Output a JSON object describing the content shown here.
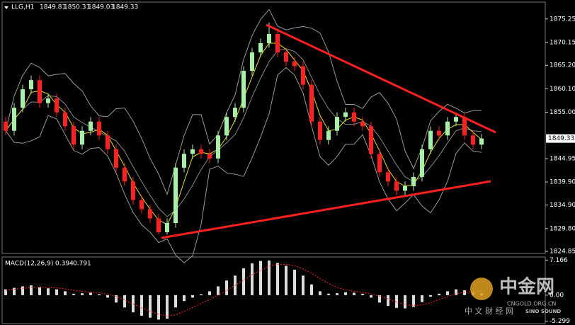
{
  "chart_data": {
    "type": "candlestick",
    "header": {
      "symbol": "LLG,H1",
      "ohlc": [
        1849.81,
        1850.31,
        1849.03,
        1849.33
      ]
    },
    "last_price": 1849.33,
    "up_color": "#a8f0a8",
    "down_color": "#ff2020",
    "open": [
      1853,
      1851,
      1856,
      1860,
      1862,
      1857,
      1858,
      1855,
      1852,
      1848,
      1851,
      1853,
      1850,
      1847,
      1843,
      1840,
      1836,
      1834,
      1832,
      1829,
      1831,
      1843,
      1846,
      1847,
      1846,
      1845,
      1850,
      1854,
      1856,
      1864,
      1868,
      1870,
      1872,
      1868,
      1866,
      1865,
      1861,
      1853,
      1849,
      1851,
      1854,
      1855,
      1853,
      1852,
      1846,
      1842,
      1840,
      1838,
      1839,
      1841,
      1847,
      1851,
      1850,
      1853,
      1854,
      1850,
      1848
    ],
    "high": [
      1854,
      1857,
      1861,
      1863,
      1863,
      1859,
      1859,
      1856,
      1853,
      1852,
      1854,
      1854,
      1851,
      1848,
      1844,
      1841,
      1837,
      1835,
      1833,
      1832,
      1844,
      1847,
      1848,
      1848,
      1847,
      1851,
      1855,
      1857,
      1865,
      1869,
      1871,
      1874.5,
      1873,
      1869,
      1867,
      1866,
      1862,
      1854,
      1852,
      1855,
      1856,
      1856,
      1854,
      1853,
      1847,
      1843,
      1841,
      1840,
      1842,
      1848,
      1852,
      1852,
      1854,
      1855,
      1855,
      1851,
      1850.31
    ],
    "low": [
      1850,
      1850,
      1855,
      1859,
      1856,
      1856,
      1854,
      1851,
      1847,
      1847,
      1850,
      1849,
      1846,
      1842,
      1839,
      1835,
      1833,
      1831,
      1828.5,
      1828.5,
      1830,
      1842,
      1845,
      1845,
      1844,
      1844,
      1849,
      1853,
      1855,
      1863,
      1867,
      1869,
      1867,
      1865,
      1864,
      1860,
      1852,
      1848,
      1848,
      1850,
      1853,
      1852,
      1851,
      1845,
      1841,
      1839,
      1837,
      1837,
      1838,
      1840,
      1846,
      1849,
      1849,
      1852,
      1849,
      1847,
      1847
    ],
    "close": [
      1851,
      1856,
      1860,
      1862,
      1857,
      1858,
      1855,
      1852,
      1848,
      1851,
      1853,
      1850,
      1847,
      1843,
      1840,
      1836,
      1834,
      1832,
      1829,
      1831,
      1843,
      1846,
      1847,
      1846,
      1845,
      1850,
      1854,
      1856,
      1864,
      1868,
      1870,
      1872,
      1868,
      1866,
      1865,
      1861,
      1853,
      1849,
      1851,
      1854,
      1855,
      1853,
      1852,
      1846,
      1842,
      1840,
      1838,
      1839,
      1841,
      1847,
      1851,
      1850,
      1853,
      1854,
      1850,
      1848,
      1849.33
    ],
    "ylim": [
      1824.4,
      1878.9
    ],
    "yticks": [
      1875.25,
      1870.15,
      {
        "value": 1865.2,
        "label": "1865.20"
      },
      {
        "value": 1860.1,
        "label": "1860.10"
      },
      {
        "value": 1855,
        "label": "1855.00"
      },
      1844.95,
      {
        "value": 1839.9,
        "label": "1839.90"
      },
      {
        "value": 1834.9,
        "label": "1834.90"
      },
      {
        "value": 1829.8,
        "label": "1829.80"
      },
      1824.85
    ],
    "macd": {
      "title": "MACD(12,26,9)",
      "main": 0.394,
      "signal_value": 0.791,
      "histogram": [
        1.2,
        1.5,
        1.8,
        2.0,
        1.6,
        1.4,
        1.2,
        0.8,
        0.3,
        0.4,
        0.5,
        0.2,
        -0.5,
        -1.5,
        -2.5,
        -3.5,
        -4.2,
        -4.6,
        -5.0,
        -4.8,
        -2.5,
        -1.2,
        -0.5,
        0.2,
        0.8,
        1.8,
        3.0,
        4.0,
        5.5,
        6.5,
        7.0,
        7.1,
        6.6,
        6.0,
        5.2,
        4.0,
        2.2,
        0.8,
        0.3,
        0.4,
        0.6,
        0.5,
        0.3,
        -0.5,
        -1.5,
        -2.2,
        -2.6,
        -2.7,
        -2.4,
        -1.4,
        -0.3,
        0.3,
        0.8,
        1.2,
        1.0,
        0.6,
        0.39
      ],
      "signal": [
        1.0,
        1.2,
        1.4,
        1.6,
        1.7,
        1.6,
        1.5,
        1.3,
        1.0,
        0.8,
        0.6,
        0.5,
        0.2,
        -0.3,
        -1.0,
        -1.8,
        -2.6,
        -3.3,
        -3.9,
        -4.3,
        -4.0,
        -3.3,
        -2.5,
        -1.7,
        -0.9,
        0.0,
        1.0,
        2.0,
        3.1,
        4.2,
        5.1,
        5.9,
        6.3,
        6.3,
        6.0,
        5.4,
        4.5,
        3.4,
        2.4,
        1.6,
        1.1,
        0.8,
        0.6,
        0.3,
        -0.2,
        -0.8,
        -1.4,
        -1.9,
        -2.1,
        -2.0,
        -1.5,
        -0.9,
        -0.3,
        0.3,
        0.6,
        0.7,
        0.79
      ],
      "ylim": [
        -5.8,
        7.8
      ],
      "yticks": [
        7.166,
        {
          "value": 0,
          "label": "0.00"
        },
        -5.299
      ]
    },
    "watermark": {
      "name": "中金网",
      "domain": "CNGOLD.ORG.CN",
      "tagline": "中 文 财 经 网",
      "partner": "SINO SOUND"
    }
  }
}
